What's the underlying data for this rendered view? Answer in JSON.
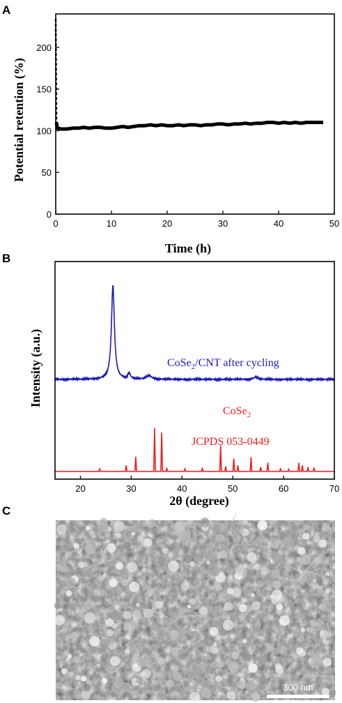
{
  "panel_labels": [
    "A",
    "B",
    "C"
  ],
  "colors": {
    "blue": "#1c1cb4",
    "red": "#ee1c1c",
    "black": "#000000"
  },
  "chart_data": [
    {
      "type": "line",
      "panel": "A",
      "xlabel": "Time (h)",
      "ylabel": "Potential retention (%)",
      "xlim": [
        0,
        50
      ],
      "ylim": [
        0,
        240
      ],
      "xticks": [
        0,
        10,
        20,
        30,
        40,
        50
      ],
      "yticks": [
        0,
        50,
        100,
        150,
        200
      ],
      "grid": false,
      "series": [
        {
          "x": [
            0,
            0.05,
            0.12,
            0.3,
            1,
            2,
            3,
            4,
            5,
            6,
            7,
            8,
            9,
            10,
            11,
            12,
            13,
            14,
            15,
            16,
            17,
            18,
            19,
            20,
            21,
            22,
            23,
            24,
            25,
            26,
            27,
            28,
            29,
            30,
            31,
            32,
            33,
            34,
            35,
            36,
            37,
            38,
            39,
            40,
            41,
            42,
            43,
            44,
            45,
            46,
            47,
            48
          ],
          "y": [
            234,
            180,
            110,
            103,
            102,
            102,
            103,
            103,
            104,
            103,
            104,
            104,
            103,
            103,
            104,
            105,
            104,
            105,
            106,
            106,
            107,
            106,
            107,
            106,
            106,
            107,
            106,
            107,
            107,
            106,
            107,
            107,
            108,
            108,
            107,
            108,
            108,
            109,
            108,
            109,
            109,
            110,
            110,
            109,
            110,
            109,
            110,
            109,
            110,
            110,
            110,
            110
          ]
        }
      ]
    },
    {
      "type": "line",
      "panel": "B",
      "xlabel": "2θ (degree)",
      "ylabel": "Intensity (a.u.)",
      "xlim": [
        15,
        70
      ],
      "xticks": [
        20,
        30,
        40,
        50,
        60,
        70
      ],
      "grid": false,
      "annotations": [
        {
          "text_main": "CoSe",
          "text_sub": "2",
          "text_rest": "/CNT  after cycling",
          "color": "blue"
        },
        {
          "text_main": "CoSe",
          "text_sub": "2",
          "text_rest": "",
          "color": "red"
        },
        {
          "text_main": "JCPDS 053-0449",
          "text_sub": "",
          "text_rest": "",
          "color": "red"
        }
      ],
      "series": [
        {
          "color": "blue",
          "baseline": 0.05,
          "peaks": [
            {
              "x": 26.4,
              "h": 1.0,
              "w": 0.35
            },
            {
              "x": 29.6,
              "h": 0.06,
              "w": 0.3
            },
            {
              "x": 33.5,
              "h": 0.04,
              "w": 0.6
            },
            {
              "x": 54.5,
              "h": 0.025,
              "w": 0.5
            }
          ]
        },
        {
          "color": "red",
          "baseline": 0.0,
          "sticks": [
            {
              "x": 23.8,
              "h": 0.06
            },
            {
              "x": 29.0,
              "h": 0.14
            },
            {
              "x": 30.9,
              "h": 0.34
            },
            {
              "x": 34.6,
              "h": 1.0
            },
            {
              "x": 36.0,
              "h": 0.9
            },
            {
              "x": 37.0,
              "h": 0.07
            },
            {
              "x": 40.6,
              "h": 0.06
            },
            {
              "x": 44.0,
              "h": 0.07
            },
            {
              "x": 47.6,
              "h": 0.6
            },
            {
              "x": 48.6,
              "h": 0.12
            },
            {
              "x": 50.2,
              "h": 0.3
            },
            {
              "x": 51.0,
              "h": 0.14
            },
            {
              "x": 53.6,
              "h": 0.33
            },
            {
              "x": 55.5,
              "h": 0.1
            },
            {
              "x": 56.9,
              "h": 0.2
            },
            {
              "x": 59.4,
              "h": 0.06
            },
            {
              "x": 61.0,
              "h": 0.05
            },
            {
              "x": 63.0,
              "h": 0.2
            },
            {
              "x": 63.7,
              "h": 0.14
            },
            {
              "x": 64.8,
              "h": 0.1
            },
            {
              "x": 66.0,
              "h": 0.09
            }
          ]
        }
      ]
    }
  ],
  "sem": {
    "scale_bar_label": "300 nm"
  }
}
